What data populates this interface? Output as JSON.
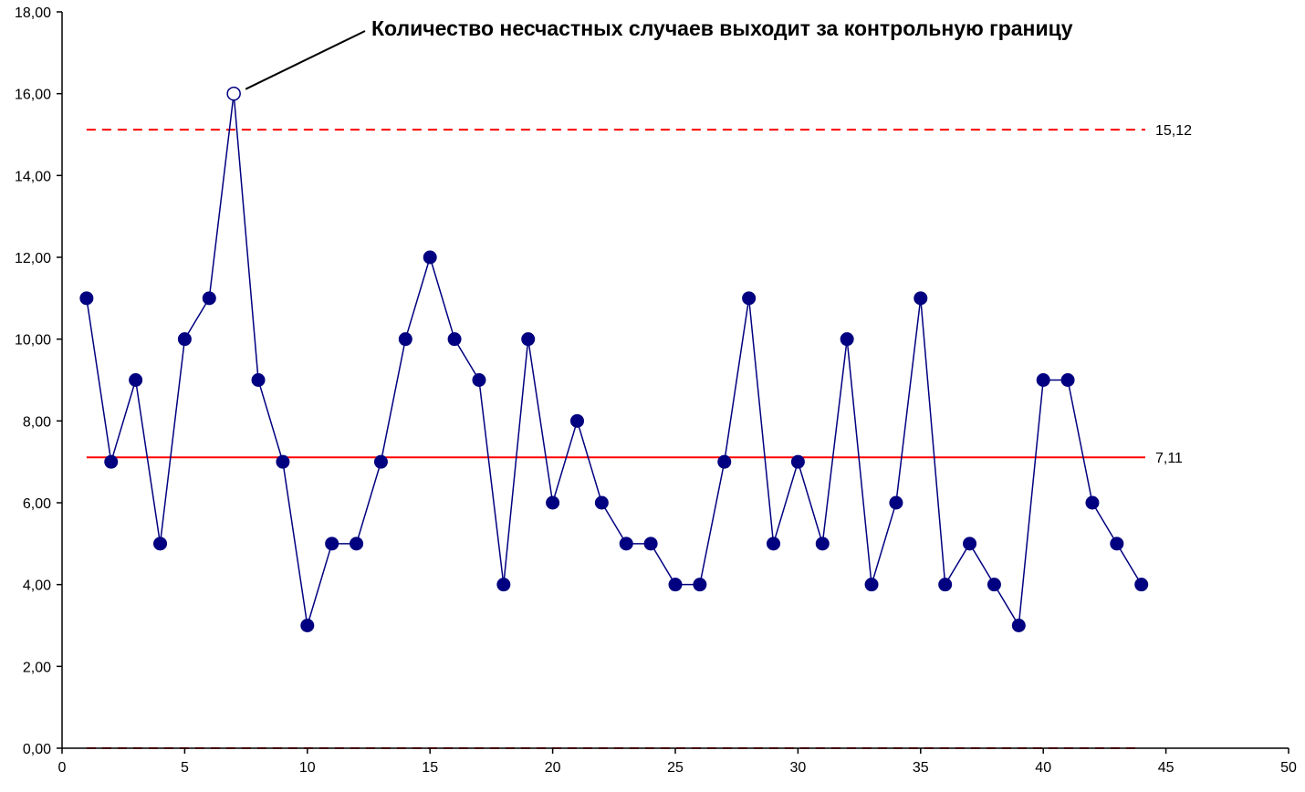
{
  "chart_data": {
    "type": "line",
    "title": "",
    "xlabel": "",
    "ylabel": "",
    "xlim": [
      0,
      50
    ],
    "ylim": [
      0,
      18
    ],
    "x_ticks": [
      0,
      5,
      10,
      15,
      20,
      25,
      30,
      35,
      40,
      45,
      50
    ],
    "x_tick_labels": [
      "0",
      "5",
      "10",
      "15",
      "20",
      "25",
      "30",
      "35",
      "40",
      "45",
      "50"
    ],
    "y_ticks": [
      0,
      2,
      4,
      6,
      8,
      10,
      12,
      14,
      16,
      18
    ],
    "y_tick_labels": [
      "0,00",
      "2,00",
      "4,00",
      "6,00",
      "8,00",
      "10,00",
      "12,00",
      "14,00",
      "16,00",
      "18,00"
    ],
    "grid": false,
    "legend": "none",
    "series": [
      {
        "x": [
          1,
          2,
          3,
          4,
          5,
          6,
          7,
          8,
          9,
          10,
          11,
          12,
          13,
          14,
          15,
          16,
          17,
          18,
          19,
          20,
          21,
          22,
          23,
          24,
          25,
          26,
          27,
          28,
          29,
          30,
          31,
          32,
          33,
          34,
          35,
          36,
          37,
          38,
          39,
          40,
          41,
          42,
          43,
          44
        ],
        "values": [
          11,
          7,
          9,
          5,
          10,
          11,
          16,
          9,
          7,
          3,
          5,
          5,
          7,
          10,
          12,
          10,
          9,
          4,
          10,
          6,
          8,
          6,
          5,
          5,
          4,
          4,
          7,
          11,
          5,
          7,
          5,
          10,
          4,
          6,
          11,
          4,
          5,
          4,
          3,
          9,
          9,
          6,
          5,
          4
        ],
        "color": "#000080",
        "marker": "filled-circle",
        "highlight": {
          "x": 7,
          "y": 16,
          "marker": "hollow-circle"
        }
      }
    ],
    "reference_lines": [
      {
        "y": 15.12,
        "label": "15,12",
        "style": "dashed",
        "color": "#ff0000"
      },
      {
        "y": 7.11,
        "label": "7,11",
        "style": "solid",
        "color": "#ff0000"
      },
      {
        "y": 0,
        "label": "",
        "style": "dashed",
        "color": "#ff0000"
      }
    ],
    "annotations": [
      {
        "text": "Количество несчастных случаев выходит за контрольную границу",
        "points_to": {
          "x": 7,
          "y": 16
        }
      }
    ]
  }
}
